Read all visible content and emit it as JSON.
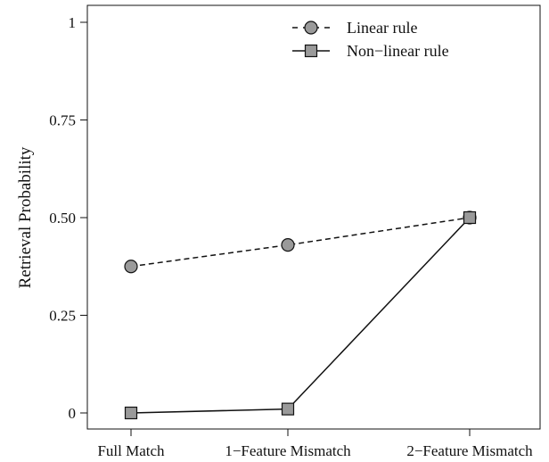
{
  "chart_data": {
    "type": "line",
    "title": "",
    "xlabel": "",
    "ylabel": "Retrieval Probability",
    "categories": [
      "Full Match",
      "1−Feature Mismatch",
      "2−Feature Mismatch"
    ],
    "ylim": [
      0,
      1
    ],
    "yticks": [
      0,
      0.25,
      0.5,
      0.75,
      1
    ],
    "ytick_labels": [
      "0",
      "0.25",
      "0.50",
      "0.75",
      "1"
    ],
    "grid": false,
    "legend_position": "top-right",
    "series": [
      {
        "name": "Linear rule",
        "values": [
          0.375,
          0.43,
          0.5
        ],
        "line_style": "dashed",
        "marker": "circle",
        "marker_color": "#9a9a9a",
        "line_color": "#111111"
      },
      {
        "name": "Non−linear rule",
        "values": [
          0.0,
          0.01,
          0.5
        ],
        "line_style": "solid",
        "marker": "square",
        "marker_color": "#9a9a9a",
        "line_color": "#111111"
      }
    ]
  }
}
